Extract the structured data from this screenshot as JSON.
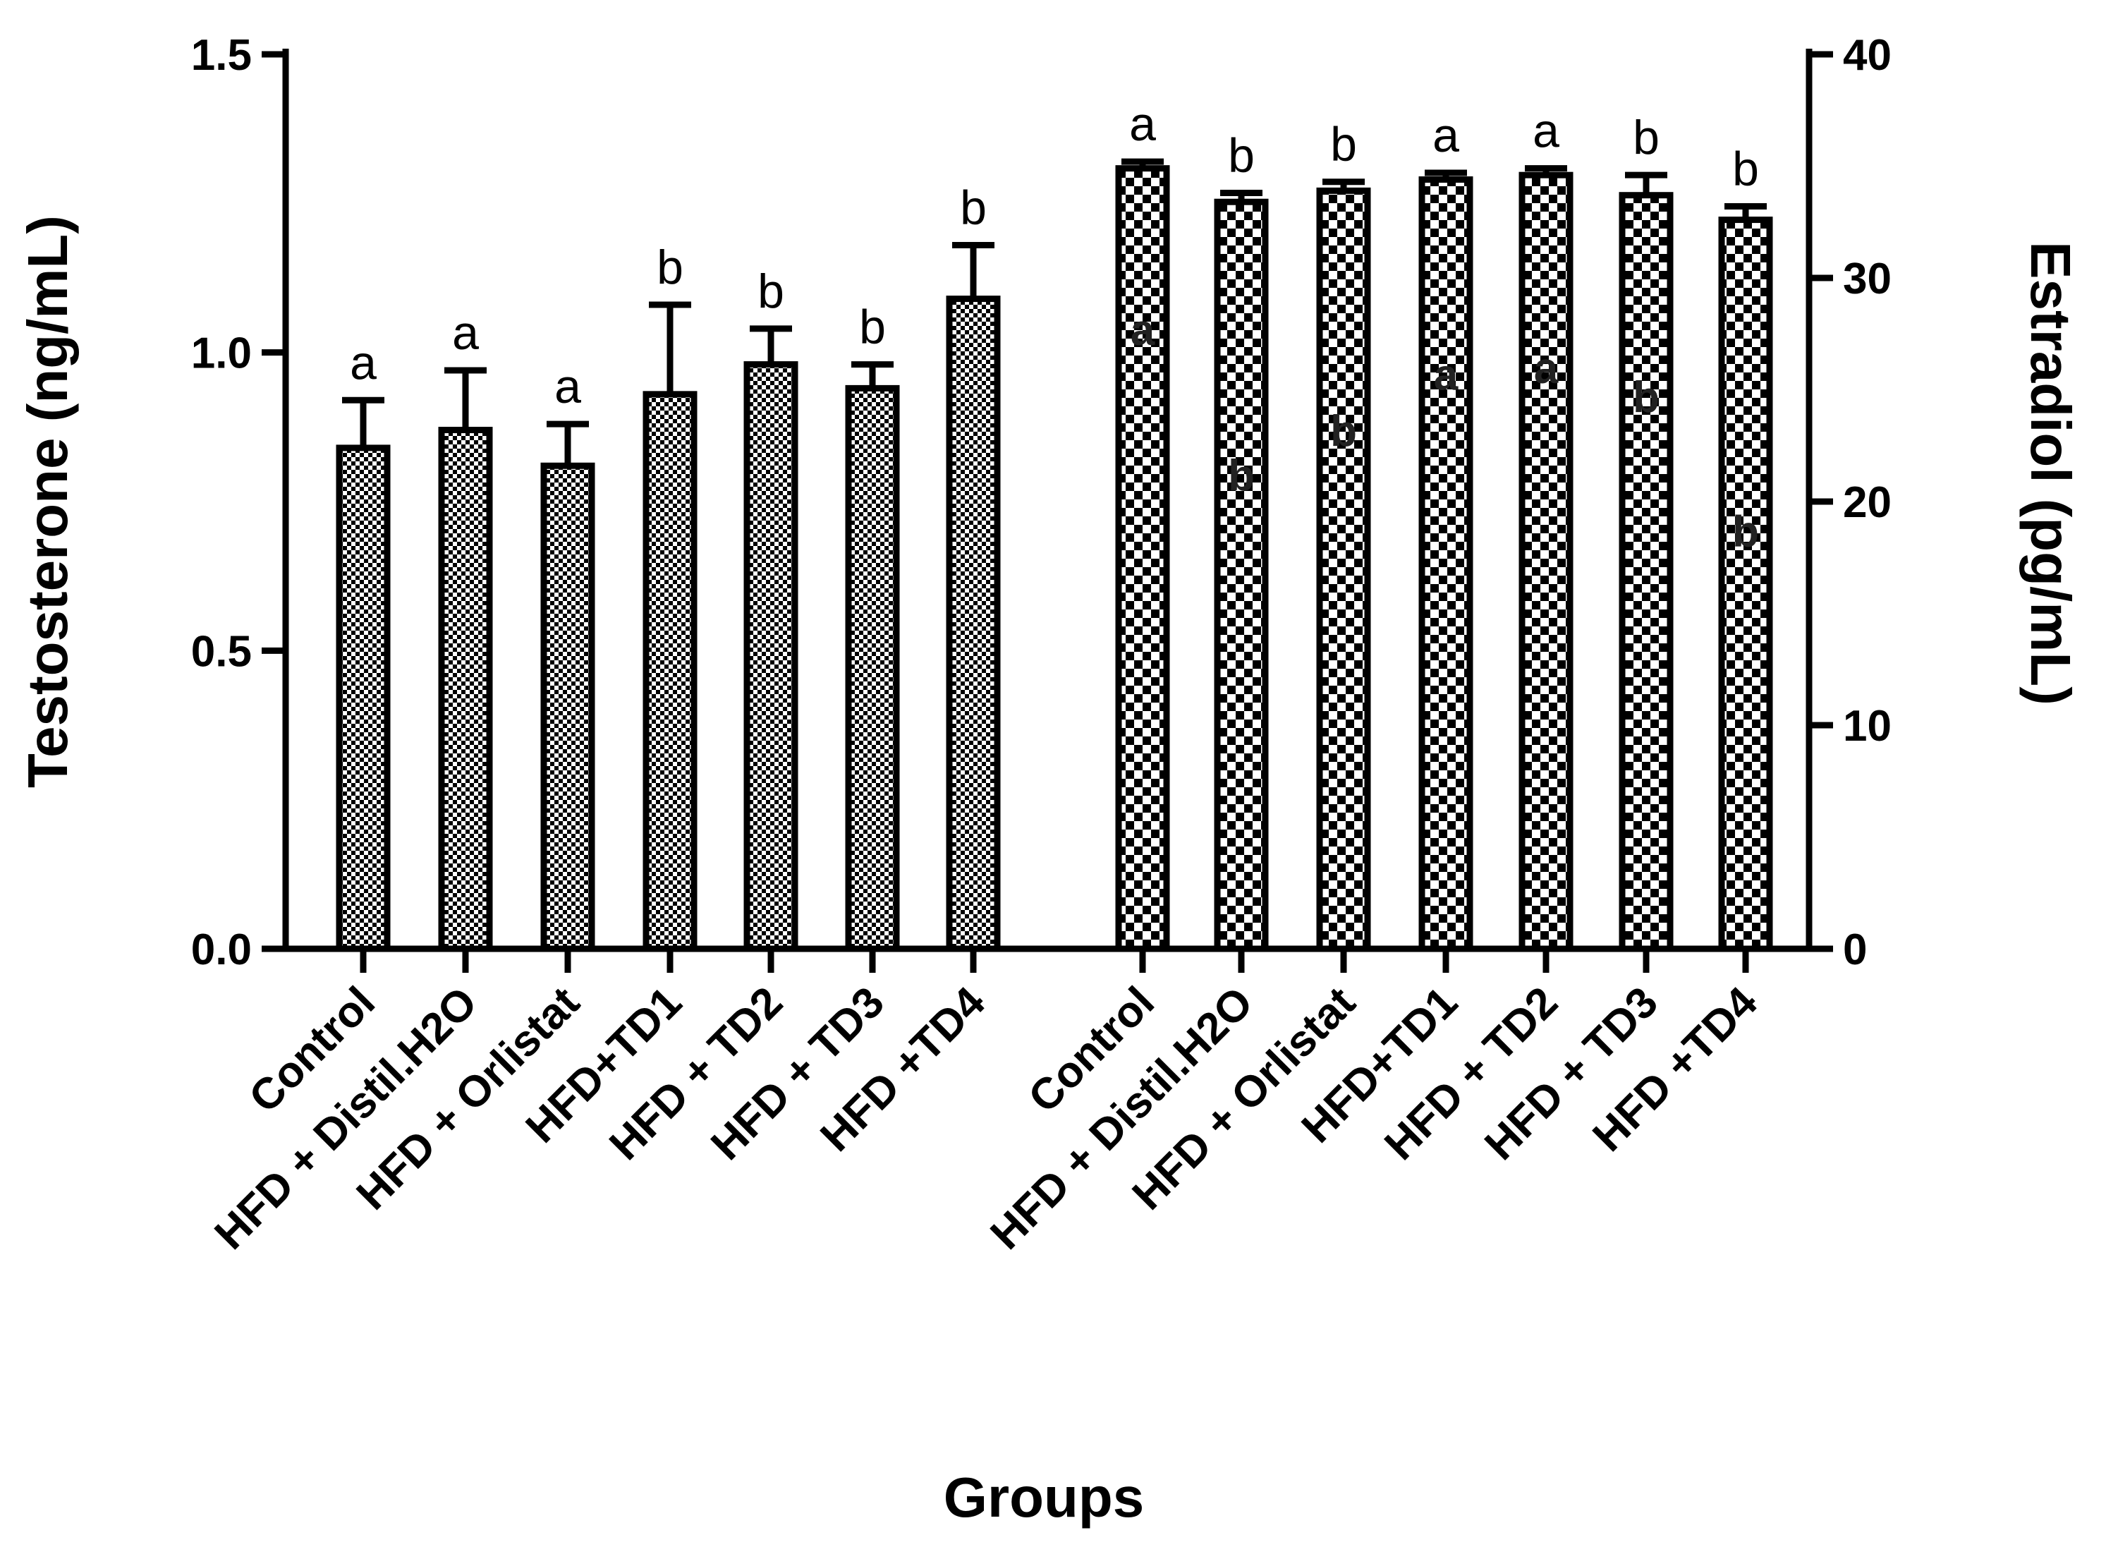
{
  "chart_data": {
    "type": "bar",
    "title": "",
    "xlabel": "Groups",
    "categories": [
      "Control",
      "HFD + Distil.H2O",
      "HFD + Orlistat",
      "HFD+TD1",
      "HFD + TD2",
      "HFD + TD3",
      "HFD +TD4"
    ],
    "y_left": {
      "label": "Testosterone (ng/mL)",
      "ylim": [
        0,
        1.5
      ],
      "ticks": [
        "0.0",
        "0.5",
        "1.0",
        "1.5"
      ]
    },
    "y_right": {
      "label": "Estradiol (pg/mL)",
      "ylim": [
        0,
        40
      ],
      "ticks": [
        "0",
        "10",
        "20",
        "30",
        "40"
      ]
    },
    "series": [
      {
        "name": "",
        "axis": "left",
        "values": [
          0.84,
          0.87,
          0.81,
          0.93,
          0.98,
          0.94,
          1.09
        ],
        "errors": [
          0.08,
          0.1,
          0.07,
          0.15,
          0.06,
          0.04,
          0.09
        ],
        "letters": [
          "a",
          "a",
          "a",
          "b",
          "b",
          "b",
          "b"
        ]
      },
      {
        "name": "",
        "axis": "right",
        "values": [
          34.9,
          33.4,
          33.9,
          34.4,
          34.6,
          33.7,
          32.6
        ],
        "errors": [
          0.3,
          0.4,
          0.4,
          0.3,
          0.3,
          0.9,
          0.6
        ],
        "letters": [
          "a",
          "b",
          "b",
          "a",
          "a",
          "b",
          "b"
        ],
        "inner_letters": [
          "a",
          "b",
          "b",
          "a",
          "a",
          "b",
          "b"
        ],
        "inner_letter_levels": [
          27,
          20.5,
          22.5,
          25,
          25.3,
          24,
          18
        ]
      }
    ],
    "grid": false,
    "legend": "none",
    "colors": {
      "bar_border": "#000000",
      "pattern_dark": "#000000",
      "pattern_light": "#ffffff",
      "background": "#ffffff"
    }
  }
}
